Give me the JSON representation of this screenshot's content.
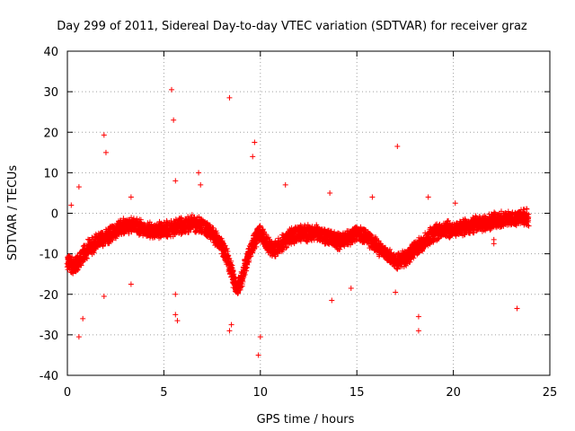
{
  "chart_data": {
    "type": "scatter",
    "title": "Day 299 of 2011, Sidereal Day-to-day VTEC variation (SDTVAR) for receiver graz",
    "xlabel": "GPS time / hours",
    "ylabel": "SDTVAR / TECUs",
    "xlim": [
      0,
      25
    ],
    "ylim": [
      -40,
      40
    ],
    "x_ticks": [
      0,
      5,
      10,
      15,
      20,
      25
    ],
    "x_tick_labels": [
      "0",
      "5",
      "10",
      "15",
      "20",
      "25"
    ],
    "y_ticks": [
      -40,
      -30,
      -20,
      -10,
      0,
      10,
      20,
      30,
      40
    ],
    "y_tick_labels": [
      "-40",
      "-30",
      "-20",
      "-10",
      "0",
      "10",
      "20",
      "30",
      "40"
    ],
    "grid": true,
    "marker": "+",
    "marker_color": "#ff0000",
    "series": [
      {
        "name": "graz",
        "trend": {
          "x": [
            0.0,
            0.3,
            0.6,
            1.0,
            1.5,
            2.0,
            2.3,
            2.6,
            3.0,
            3.5,
            4.0,
            4.5,
            5.0,
            5.5,
            6.0,
            6.5,
            7.0,
            7.5,
            8.0,
            8.3,
            8.6,
            8.8,
            9.0,
            9.2,
            9.5,
            9.8,
            10.0,
            10.3,
            10.6,
            11.0,
            11.5,
            12.0,
            12.5,
            13.0,
            13.5,
            14.0,
            14.5,
            15.0,
            15.5,
            16.0,
            16.5,
            17.0,
            17.5,
            18.0,
            18.5,
            19.0,
            19.5,
            20.0,
            20.5,
            21.0,
            21.5,
            22.0,
            22.5,
            23.0,
            23.5,
            23.9
          ],
          "y": [
            -12,
            -13,
            -12,
            -9,
            -7,
            -6,
            -5,
            -4,
            -3,
            -3,
            -4,
            -4.5,
            -4,
            -3.5,
            -3,
            -2.5,
            -3,
            -5,
            -8,
            -11,
            -16,
            -19,
            -17,
            -13,
            -9,
            -6,
            -5,
            -7,
            -9,
            -8,
            -6,
            -5,
            -5,
            -5,
            -6,
            -7,
            -6,
            -5,
            -6,
            -8,
            -10,
            -12,
            -11,
            -9,
            -7,
            -5,
            -4,
            -4,
            -3.5,
            -3,
            -2.5,
            -2,
            -1.5,
            -1.5,
            -1,
            -1
          ]
        },
        "points": [
          {
            "x": 0.2,
            "y": 2
          },
          {
            "x": 0.6,
            "y": 6.5
          },
          {
            "x": 0.6,
            "y": -30.5
          },
          {
            "x": 0.8,
            "y": -26
          },
          {
            "x": 1.9,
            "y": 19.3
          },
          {
            "x": 1.9,
            "y": -20.5
          },
          {
            "x": 2.0,
            "y": 15
          },
          {
            "x": 3.3,
            "y": -17.5
          },
          {
            "x": 3.3,
            "y": 4
          },
          {
            "x": 5.4,
            "y": 30.5
          },
          {
            "x": 5.5,
            "y": 23
          },
          {
            "x": 5.6,
            "y": 8
          },
          {
            "x": 5.6,
            "y": -20
          },
          {
            "x": 5.6,
            "y": -25
          },
          {
            "x": 5.7,
            "y": -26.5
          },
          {
            "x": 6.8,
            "y": 10
          },
          {
            "x": 6.9,
            "y": 7
          },
          {
            "x": 8.4,
            "y": 28.5
          },
          {
            "x": 8.5,
            "y": -27.5
          },
          {
            "x": 8.4,
            "y": -29
          },
          {
            "x": 9.7,
            "y": 17.5
          },
          {
            "x": 9.6,
            "y": 14
          },
          {
            "x": 10.0,
            "y": -30.5
          },
          {
            "x": 9.9,
            "y": -35
          },
          {
            "x": 11.3,
            "y": 7
          },
          {
            "x": 13.7,
            "y": -21.5
          },
          {
            "x": 13.6,
            "y": 5
          },
          {
            "x": 14.7,
            "y": -18.5
          },
          {
            "x": 15.8,
            "y": 4
          },
          {
            "x": 17.1,
            "y": 16.5
          },
          {
            "x": 17.0,
            "y": -19.5
          },
          {
            "x": 18.2,
            "y": -25.5
          },
          {
            "x": 18.2,
            "y": -29
          },
          {
            "x": 18.7,
            "y": 4
          },
          {
            "x": 20.1,
            "y": 2.5
          },
          {
            "x": 22.1,
            "y": -6.5
          },
          {
            "x": 22.1,
            "y": -7.5
          },
          {
            "x": 23.3,
            "y": -23.5
          }
        ]
      }
    ]
  }
}
